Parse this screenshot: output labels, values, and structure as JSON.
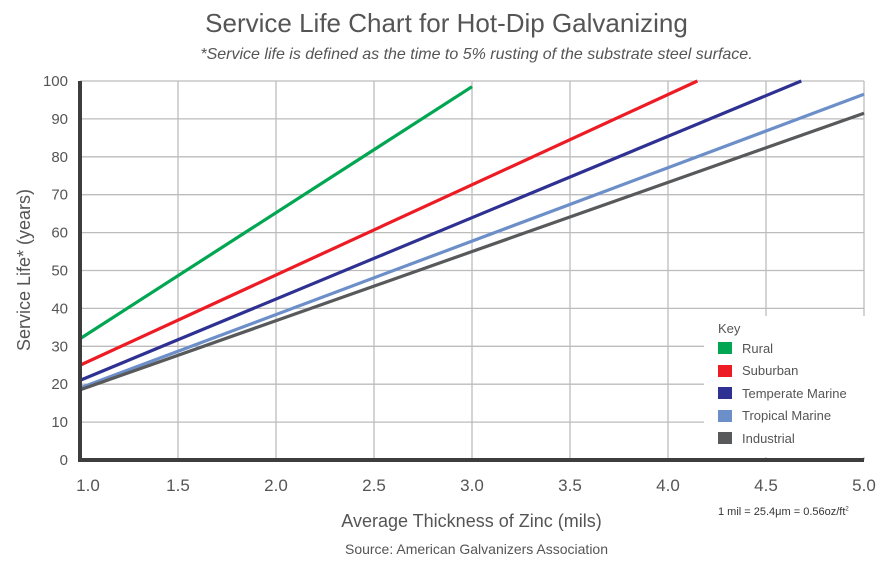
{
  "chart_data": {
    "type": "line",
    "title": "Service Life Chart for Hot-Dip Galvanizing",
    "subtitle": "*Service life is defined as the time to 5% rusting of the substrate steel surface.",
    "xlabel": "Average Thickness of Zinc (mils)",
    "ylabel": "Service Life* (years)",
    "xlim": [
      1.0,
      5.0
    ],
    "ylim": [
      0,
      100
    ],
    "x_ticks": [
      "1.0",
      "1.5",
      "2.0",
      "2.5",
      "3.0",
      "3.5",
      "4.0",
      "4.5",
      "5.0"
    ],
    "y_ticks": [
      "0",
      "10",
      "20",
      "30",
      "40",
      "50",
      "60",
      "70",
      "80",
      "90",
      "100"
    ],
    "grid": true,
    "legend_title": "Key",
    "legend_position": "bottom-right",
    "series": [
      {
        "name": "Rural",
        "color": "#00a651",
        "x": [
          1.0,
          3.0
        ],
        "y": [
          32,
          98.5
        ]
      },
      {
        "name": "Suburban",
        "color": "#ed1c24",
        "x": [
          1.0,
          4.15
        ],
        "y": [
          25,
          100
        ]
      },
      {
        "name": "Temperate Marine",
        "color": "#2e3192",
        "x": [
          1.0,
          4.68
        ],
        "y": [
          21,
          100
        ]
      },
      {
        "name": "Tropical Marine",
        "color": "#6d8fc9",
        "x": [
          1.0,
          5.0
        ],
        "y": [
          19,
          96.5
        ]
      },
      {
        "name": "Industrial",
        "color": "#58595b",
        "x": [
          1.0,
          5.0
        ],
        "y": [
          18.5,
          91.5
        ]
      }
    ],
    "annotations": [
      "1 mil = 25.4μm = 0.56oz/ft",
      "Source: American Galvanizers Association"
    ]
  },
  "note": {
    "text": "1 mil = 25.4μm = 0.56oz/ft",
    "sup": "2"
  },
  "source": "Source: American Galvanizers Association"
}
